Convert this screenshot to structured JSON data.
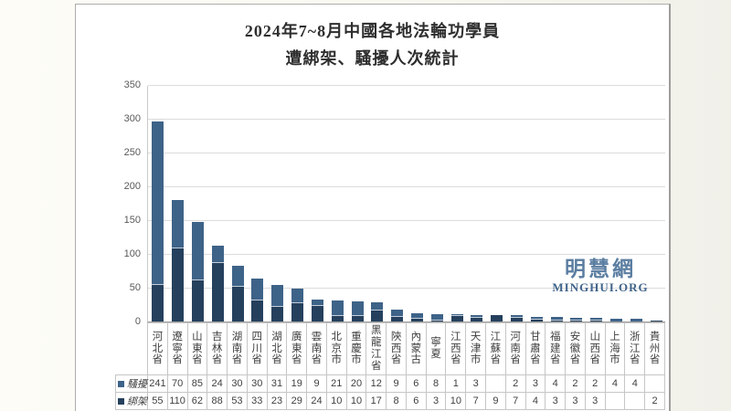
{
  "title": {
    "line1": "2024年7~8月中國各地法輪功學員",
    "line2": "遭綁架、騷擾人次統計"
  },
  "watermark": {
    "cjk": "明慧網",
    "latin": "MINGHUI.ORG"
  },
  "colors": {
    "harassment_series": "#3e6388",
    "kidnapping_series": "#25405d",
    "segment_divider": "#c3cedb",
    "gridline": "#dcdcdc",
    "axis_text": "#595959",
    "watermark_blue": "#5b7ea1"
  },
  "chart_data": {
    "type": "bar",
    "stacked": true,
    "title": "2024年7~8月中國各地法輪功學員遭綁架、騷擾人次統計",
    "xlabel": "",
    "ylabel": "",
    "ylim": [
      0,
      350
    ],
    "ytick_interval": 50,
    "yticks": [
      0,
      50,
      100,
      150,
      200,
      250,
      300,
      350
    ],
    "grid": true,
    "legend_position": "data-table-left",
    "data_table_shown": true,
    "categories": [
      "河北省",
      "遼寧省",
      "山東省",
      "吉林省",
      "湖南省",
      "四川省",
      "湖北省",
      "廣東省",
      "雲南省",
      "北京市",
      "重慶市",
      "黑龍江省",
      "陝西省",
      "內蒙古",
      "寧夏",
      "江西省",
      "天津市",
      "江蘇省",
      "河南省",
      "甘肅省",
      "福建省",
      "安徽省",
      "山西省",
      "上海市",
      "浙江省",
      "貴州省"
    ],
    "series": [
      {
        "name": "騷擾",
        "color": "#3e6388",
        "stack_position": "top",
        "values": [
          241,
          70,
          85,
          24,
          30,
          30,
          31,
          19,
          9,
          21,
          20,
          12,
          9,
          6,
          8,
          1,
          3,
          null,
          2,
          3,
          4,
          2,
          2,
          4,
          4,
          null
        ]
      },
      {
        "name": "綁架",
        "color": "#25405d",
        "stack_position": "bottom",
        "values": [
          55,
          110,
          62,
          88,
          53,
          33,
          23,
          29,
          24,
          10,
          10,
          17,
          8,
          6,
          3,
          10,
          7,
          9,
          7,
          4,
          3,
          3,
          3,
          null,
          null,
          2
        ]
      }
    ]
  }
}
